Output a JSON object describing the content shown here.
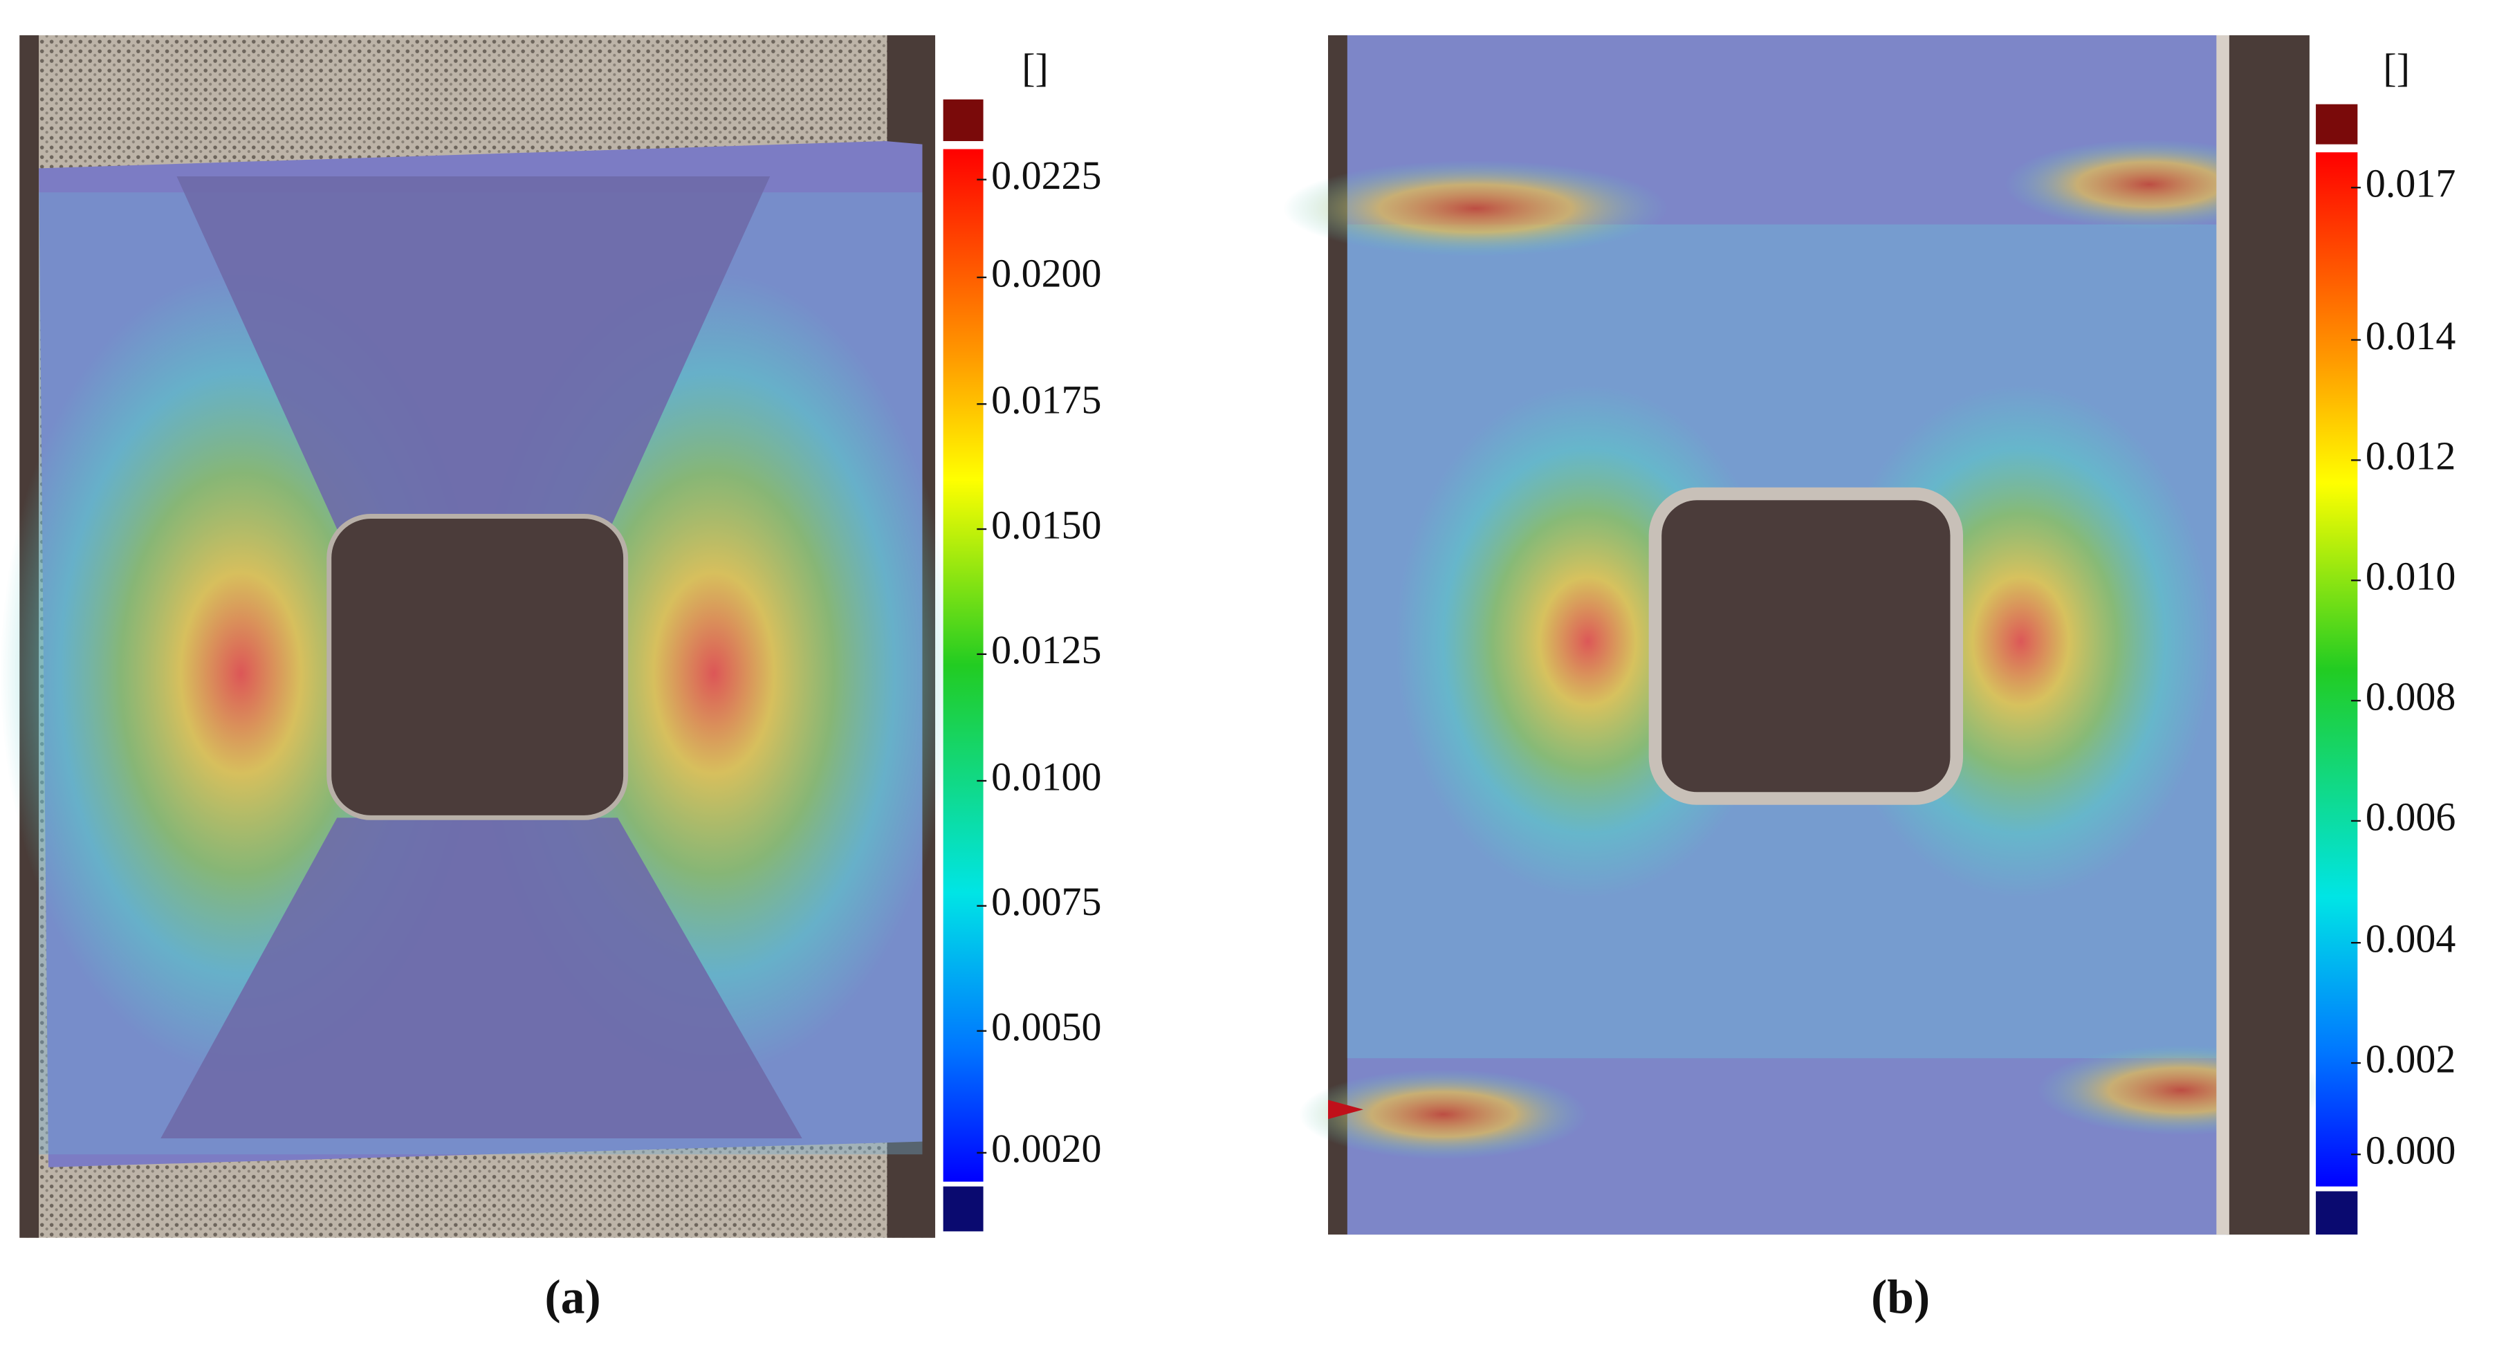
{
  "panels": [
    {
      "caption": "(a)",
      "colorbar": {
        "unit": "[]",
        "ticks": [
          "0.0225",
          "0.0200",
          "0.0175",
          "0.0150",
          "0.0125",
          "0.0100",
          "0.0075",
          "0.0050",
          "0.0020"
        ]
      }
    },
    {
      "caption": "(b)",
      "colorbar": {
        "unit": "[]",
        "ticks": [
          "0.017",
          "0.014",
          "0.012",
          "0.010",
          "0.008",
          "0.006",
          "0.004",
          "0.002",
          "0.000"
        ]
      }
    }
  ]
}
